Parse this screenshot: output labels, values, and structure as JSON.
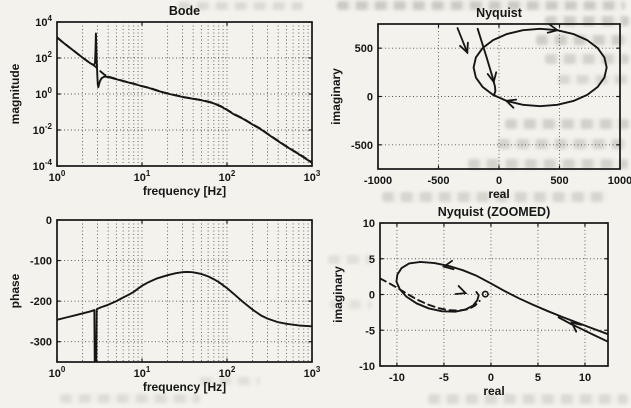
{
  "page": {
    "background_color": "#f3f2ec",
    "ink_color": "#161616"
  },
  "chart_data": [
    {
      "id": "bode_magnitude",
      "type": "line",
      "title": "Bode",
      "xlabel": "frequency [Hz]",
      "ylabel": "magnitude",
      "xscale": "log",
      "xlim": [
        1,
        1000
      ],
      "xticks": [
        {
          "v": 1,
          "label": "10^0"
        },
        {
          "v": 10,
          "label": "10^1"
        },
        {
          "v": 100,
          "label": "10^2"
        },
        {
          "v": 1000,
          "label": "10^3"
        }
      ],
      "yscale": "log",
      "ylim": [
        0.0001,
        10000
      ],
      "yticks": [
        {
          "v": 10000,
          "label": "10^4"
        },
        {
          "v": 100,
          "label": "10^2"
        },
        {
          "v": 1,
          "label": "10^0"
        },
        {
          "v": 0.01,
          "label": "10^-2"
        },
        {
          "v": 0.0001,
          "label": "10^-4"
        }
      ],
      "grid": {
        "x_minor_log": true,
        "y_values": [
          100,
          1,
          0.01
        ]
      },
      "series": [
        {
          "name": "dashed smooth magnitude",
          "style": "dashed",
          "points": [
            [
              1,
              1400
            ],
            [
              1.2,
              680
            ],
            [
              1.5,
              300
            ],
            [
              1.8,
              155
            ],
            [
              2.1,
              88
            ],
            [
              2.4,
              56
            ],
            [
              2.7,
              40
            ],
            [
              3,
              26
            ],
            [
              3.3,
              17
            ],
            [
              3.6,
              12
            ],
            [
              4,
              9.5
            ],
            [
              4.5,
              7.9
            ],
            [
              5,
              6.8
            ],
            [
              6,
              5.3
            ],
            [
              7,
              4.4
            ],
            [
              8,
              3.75
            ],
            [
              10,
              2.75
            ],
            [
              12,
              2.25
            ],
            [
              15,
              1.6
            ],
            [
              18,
              1.22
            ],
            [
              21,
              1.02
            ],
            [
              25,
              0.85
            ],
            [
              30,
              0.7
            ],
            [
              40,
              0.55
            ],
            [
              50,
              0.46
            ],
            [
              60,
              0.38
            ],
            [
              70,
              0.31
            ],
            [
              85,
              0.21
            ],
            [
              100,
              0.135
            ],
            [
              120,
              0.078
            ],
            [
              150,
              0.047
            ],
            [
              200,
              0.021
            ],
            [
              250,
              0.0115
            ],
            [
              300,
              0.0062
            ],
            [
              400,
              0.0025
            ],
            [
              500,
              0.00125
            ],
            [
              700,
              0.00047
            ],
            [
              1000,
              0.00016
            ]
          ]
        },
        {
          "name": "solid magnitude with resonance",
          "style": "solid",
          "points": [
            [
              1,
              1400
            ],
            [
              1.2,
              680
            ],
            [
              1.5,
              300
            ],
            [
              1.8,
              155
            ],
            [
              2.1,
              88
            ],
            [
              2.4,
              56
            ],
            [
              2.6,
              44
            ],
            [
              2.72,
              40
            ],
            [
              2.8,
              52
            ],
            [
              2.84,
              300
            ],
            [
              2.87,
              2300
            ],
            [
              2.9,
              420
            ],
            [
              2.94,
              60
            ],
            [
              2.98,
              11
            ],
            [
              3.02,
              3.4
            ],
            [
              3.06,
              2.4
            ],
            [
              3.12,
              3.4
            ],
            [
              3.2,
              5.2
            ],
            [
              3.35,
              7.6
            ],
            [
              3.6,
              9.3
            ],
            [
              4,
              8.8
            ],
            [
              4.5,
              7.6
            ],
            [
              5,
              6.6
            ],
            [
              6,
              5.2
            ],
            [
              7,
              4.3
            ],
            [
              8,
              3.7
            ],
            [
              10,
              2.7
            ],
            [
              12,
              2.2
            ],
            [
              15,
              1.55
            ],
            [
              18,
              1.2
            ],
            [
              21,
              1
            ],
            [
              25,
              0.83
            ],
            [
              30,
              0.68
            ],
            [
              40,
              0.54
            ],
            [
              50,
              0.45
            ],
            [
              60,
              0.37
            ],
            [
              70,
              0.3
            ],
            [
              85,
              0.2
            ],
            [
              100,
              0.13
            ],
            [
              120,
              0.075
            ],
            [
              150,
              0.045
            ],
            [
              200,
              0.02
            ],
            [
              250,
              0.011
            ],
            [
              300,
              0.006
            ],
            [
              400,
              0.0024
            ],
            [
              500,
              0.0012
            ],
            [
              700,
              0.00045
            ],
            [
              1000,
              0.00015
            ]
          ]
        }
      ]
    },
    {
      "id": "nyquist",
      "type": "line",
      "title": "Nyquist",
      "xlabel": "real",
      "ylabel": "imaginary",
      "xscale": "linear",
      "xlim": [
        -1000,
        1000
      ],
      "xticks": [
        {
          "v": -1000,
          "label": "-1000"
        },
        {
          "v": -500,
          "label": "-500"
        },
        {
          "v": 0,
          "label": "0"
        },
        {
          "v": 500,
          "label": "500"
        },
        {
          "v": 1000,
          "label": "1000"
        }
      ],
      "yscale": "linear",
      "ylim": [
        -750,
        750
      ],
      "yticks": [
        {
          "v": 500,
          "label": "500"
        },
        {
          "v": 0,
          "label": "0"
        },
        {
          "v": -500,
          "label": "-500"
        }
      ],
      "grid": {
        "x_values": [
          -500,
          0,
          500
        ],
        "y_values": [
          500,
          0,
          -500
        ]
      },
      "series": [
        {
          "name": "nyquist locus",
          "style": "solid",
          "points": [
            [
              -176,
              700
            ],
            [
              -140,
              555
            ],
            [
              -105,
              415
            ],
            [
              -75,
              290
            ],
            [
              -50,
              185
            ],
            [
              -33,
              100
            ],
            [
              -30,
              55
            ],
            [
              -38,
              25
            ],
            [
              -49,
              17
            ],
            [
              -136,
              100
            ],
            [
              -191,
              196
            ],
            [
              -210,
              300
            ],
            [
              -191,
              404
            ],
            [
              -136,
              500
            ],
            [
              -49,
              583
            ],
            [
              65,
              646
            ],
            [
              198,
              686
            ],
            [
              340,
              700
            ],
            [
              482,
              686
            ],
            [
              615,
              646
            ],
            [
              729,
              583
            ],
            [
              816,
              500
            ],
            [
              871,
              404
            ],
            [
              890,
              300
            ],
            [
              871,
              196
            ],
            [
              816,
              100
            ],
            [
              729,
              17
            ],
            [
              615,
              -46
            ],
            [
              482,
              -86
            ],
            [
              340,
              -100
            ],
            [
              198,
              -86
            ],
            [
              65,
              -46
            ],
            [
              -49,
              17
            ]
          ]
        }
      ],
      "arrows": [
        {
          "x": -44,
          "y": 150,
          "angle": -79
        },
        {
          "x": 482,
          "y": 686,
          "angle": -11
        },
        {
          "x": 60,
          "y": -44,
          "angle": 161
        }
      ],
      "annotation_arrows": [
        {
          "from": [
            -343,
            708
          ],
          "to": [
            -262,
            455
          ]
        }
      ]
    },
    {
      "id": "phase",
      "type": "line",
      "title": "",
      "xlabel": "frequency [Hz]",
      "ylabel": "phase",
      "xscale": "log",
      "xlim": [
        1,
        1000
      ],
      "xticks": [
        {
          "v": 1,
          "label": "10^0"
        },
        {
          "v": 10,
          "label": "10^1"
        },
        {
          "v": 100,
          "label": "10^2"
        },
        {
          "v": 1000,
          "label": "10^3"
        }
      ],
      "yscale": "linear",
      "ylim": [
        -350,
        0
      ],
      "yticks": [
        {
          "v": 0,
          "label": "0"
        },
        {
          "v": -100,
          "label": "-100"
        },
        {
          "v": -200,
          "label": "-200"
        },
        {
          "v": -300,
          "label": "-300"
        }
      ],
      "grid": {
        "x_minor_log": true,
        "y_values": [
          -100,
          -200,
          -300
        ]
      },
      "series": [
        {
          "name": "phase curve",
          "style": "solid",
          "points": [
            [
              1,
              -246
            ],
            [
              1.3,
              -240
            ],
            [
              1.7,
              -234
            ],
            [
              2.1,
              -229
            ],
            [
              2.5,
              -225
            ],
            [
              2.75,
              -222
            ],
            [
              2.78,
              -350
            ],
            [
              2.9,
              -350
            ],
            [
              2.93,
              -220
            ],
            [
              3.3,
              -215
            ],
            [
              4,
              -209
            ],
            [
              5,
              -200
            ],
            [
              6,
              -191
            ],
            [
              7,
              -184
            ],
            [
              8,
              -177
            ],
            [
              10,
              -162
            ],
            [
              12,
              -153
            ],
            [
              15,
              -144
            ],
            [
              20,
              -136
            ],
            [
              25,
              -131
            ],
            [
              30,
              -128.5
            ],
            [
              35,
              -128
            ],
            [
              40,
              -129
            ],
            [
              50,
              -133
            ],
            [
              60,
              -139
            ],
            [
              70,
              -146
            ],
            [
              80,
              -153
            ],
            [
              100,
              -168
            ],
            [
              120,
              -182
            ],
            [
              150,
              -200
            ],
            [
              200,
              -221
            ],
            [
              250,
              -235
            ],
            [
              300,
              -243
            ],
            [
              400,
              -252
            ],
            [
              500,
              -256
            ],
            [
              700,
              -260
            ],
            [
              1000,
              -262
            ]
          ]
        }
      ]
    },
    {
      "id": "nyquist_zoomed",
      "type": "line",
      "title": "Nyquist (ZOOMED)",
      "xlabel": "real",
      "ylabel": "imaginary",
      "xscale": "linear",
      "xlim": [
        -11.8,
        12.45
      ],
      "xticks": [
        {
          "v": -10,
          "label": "-10"
        },
        {
          "v": -5,
          "label": "-5"
        },
        {
          "v": 0,
          "label": "0"
        },
        {
          "v": 5,
          "label": "5"
        },
        {
          "v": 10,
          "label": "10"
        }
      ],
      "yscale": "linear",
      "ylim": [
        -10,
        10
      ],
      "yticks": [
        {
          "v": 10,
          "label": "10"
        },
        {
          "v": 5,
          "label": "5"
        },
        {
          "v": 0,
          "label": "0"
        },
        {
          "v": -5,
          "label": "-5"
        },
        {
          "v": -10,
          "label": "-10"
        }
      ],
      "grid": {
        "x_values": [
          -10,
          -5,
          0,
          5,
          10
        ],
        "y_values": [
          5,
          0,
          -5
        ]
      },
      "series": [
        {
          "name": "zoomed nyquist locus",
          "style": "solid",
          "points": [
            [
              12.45,
              -5.55
            ],
            [
              10.5,
              -4.6
            ],
            [
              9,
              -3.85
            ],
            [
              7.5,
              -3.1
            ],
            [
              6,
              -2.3
            ],
            [
              4.5,
              -1.45
            ],
            [
              3,
              -0.55
            ],
            [
              1.5,
              0.45
            ],
            [
              0,
              1.55
            ],
            [
              -1.5,
              2.6
            ],
            [
              -3,
              3.4
            ],
            [
              -4.5,
              4.0
            ],
            [
              -6,
              4.4
            ],
            [
              -7.5,
              4.55
            ],
            [
              -8.7,
              4.35
            ],
            [
              -9.5,
              3.7
            ],
            [
              -9.95,
              2.8
            ],
            [
              -10.05,
              1.8
            ],
            [
              -9.7,
              0.75
            ],
            [
              -9,
              -0.3
            ],
            [
              -7.9,
              -1.25
            ],
            [
              -6.6,
              -1.95
            ],
            [
              -5.2,
              -2.35
            ],
            [
              -3.8,
              -2.4
            ],
            [
              -2.7,
              -2.1
            ],
            [
              -1.9,
              -1.55
            ],
            [
              -1.45,
              -0.8
            ],
            [
              -1.3,
              -0.1
            ],
            [
              -1.55,
              0.35
            ]
          ]
        },
        {
          "name": "incoming branch",
          "style": "solid",
          "points": [
            [
              12.45,
              -6.6
            ],
            [
              11,
              -5.7
            ],
            [
              9.6,
              -4.8
            ],
            [
              8.4,
              -4.05
            ],
            [
              7.2,
              -3.2
            ]
          ]
        },
        {
          "name": "dashed model locus",
          "style": "dashed",
          "points": [
            [
              -11.8,
              2.25
            ],
            [
              -10.8,
              1.55
            ],
            [
              -9.8,
              0.8
            ],
            [
              -8.8,
              0
            ],
            [
              -7.8,
              -0.75
            ],
            [
              -6.7,
              -1.4
            ],
            [
              -5.6,
              -1.9
            ],
            [
              -4.5,
              -2.2
            ],
            [
              -3.4,
              -2.25
            ],
            [
              -2.4,
              -2.05
            ],
            [
              -1.7,
              -1.55
            ],
            [
              -1.2,
              -0.9
            ]
          ]
        }
      ],
      "arrows": [
        {
          "x": -5.0,
          "y": 3.9,
          "angle": 190
        },
        {
          "x": 8.6,
          "y": -3.95,
          "angle": 142
        },
        {
          "x": -2.7,
          "y": 0.2,
          "angle": -20
        }
      ],
      "markers": [
        {
          "x": -0.6,
          "y": 0.05,
          "shape": "o"
        }
      ]
    }
  ]
}
